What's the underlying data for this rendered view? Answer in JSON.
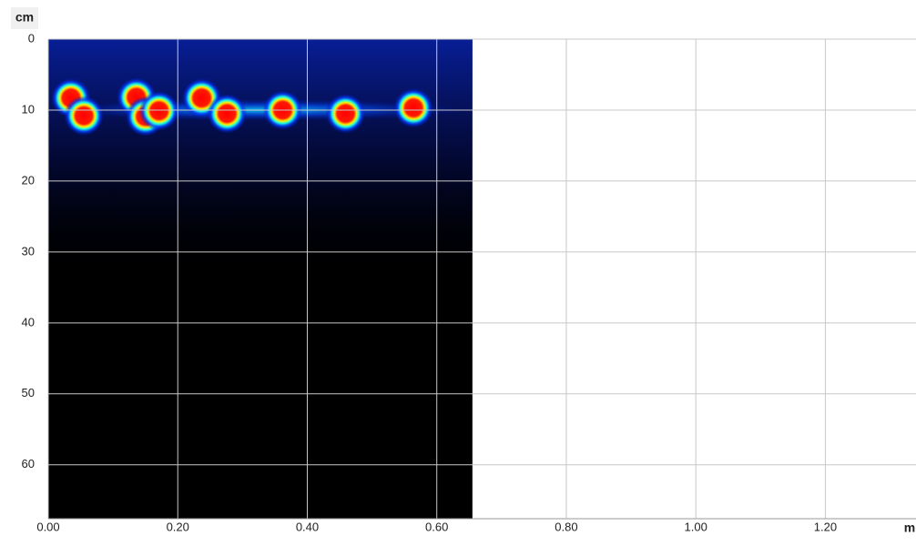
{
  "chart_data": {
    "type": "heatmap",
    "x_label": "m",
    "y_label": "cm",
    "xlim": [
      0,
      1.34
    ],
    "ylim": [
      0,
      67.6
    ],
    "scan_xlim": [
      0,
      0.655
    ],
    "xticks": [
      {
        "value": 0,
        "label": "0.00"
      },
      {
        "value": 0.2,
        "label": "0.20"
      },
      {
        "value": 0.4,
        "label": "0.40"
      },
      {
        "value": 0.6,
        "label": "0.60"
      },
      {
        "value": 0.8,
        "label": "0.80"
      },
      {
        "value": 1.0,
        "label": "1.00"
      },
      {
        "value": 1.2,
        "label": "1.20"
      }
    ],
    "yticks": [
      0,
      10,
      20,
      30,
      40,
      50,
      60
    ],
    "grid": true,
    "x": [
      0.035,
      0.055,
      0.136,
      0.15,
      0.171,
      0.237,
      0.276,
      0.362,
      0.459,
      0.564
    ],
    "values": [
      8.3,
      10.8,
      8.2,
      10.9,
      10.1,
      8.3,
      10.5,
      10,
      10.5,
      9.7
    ]
  }
}
